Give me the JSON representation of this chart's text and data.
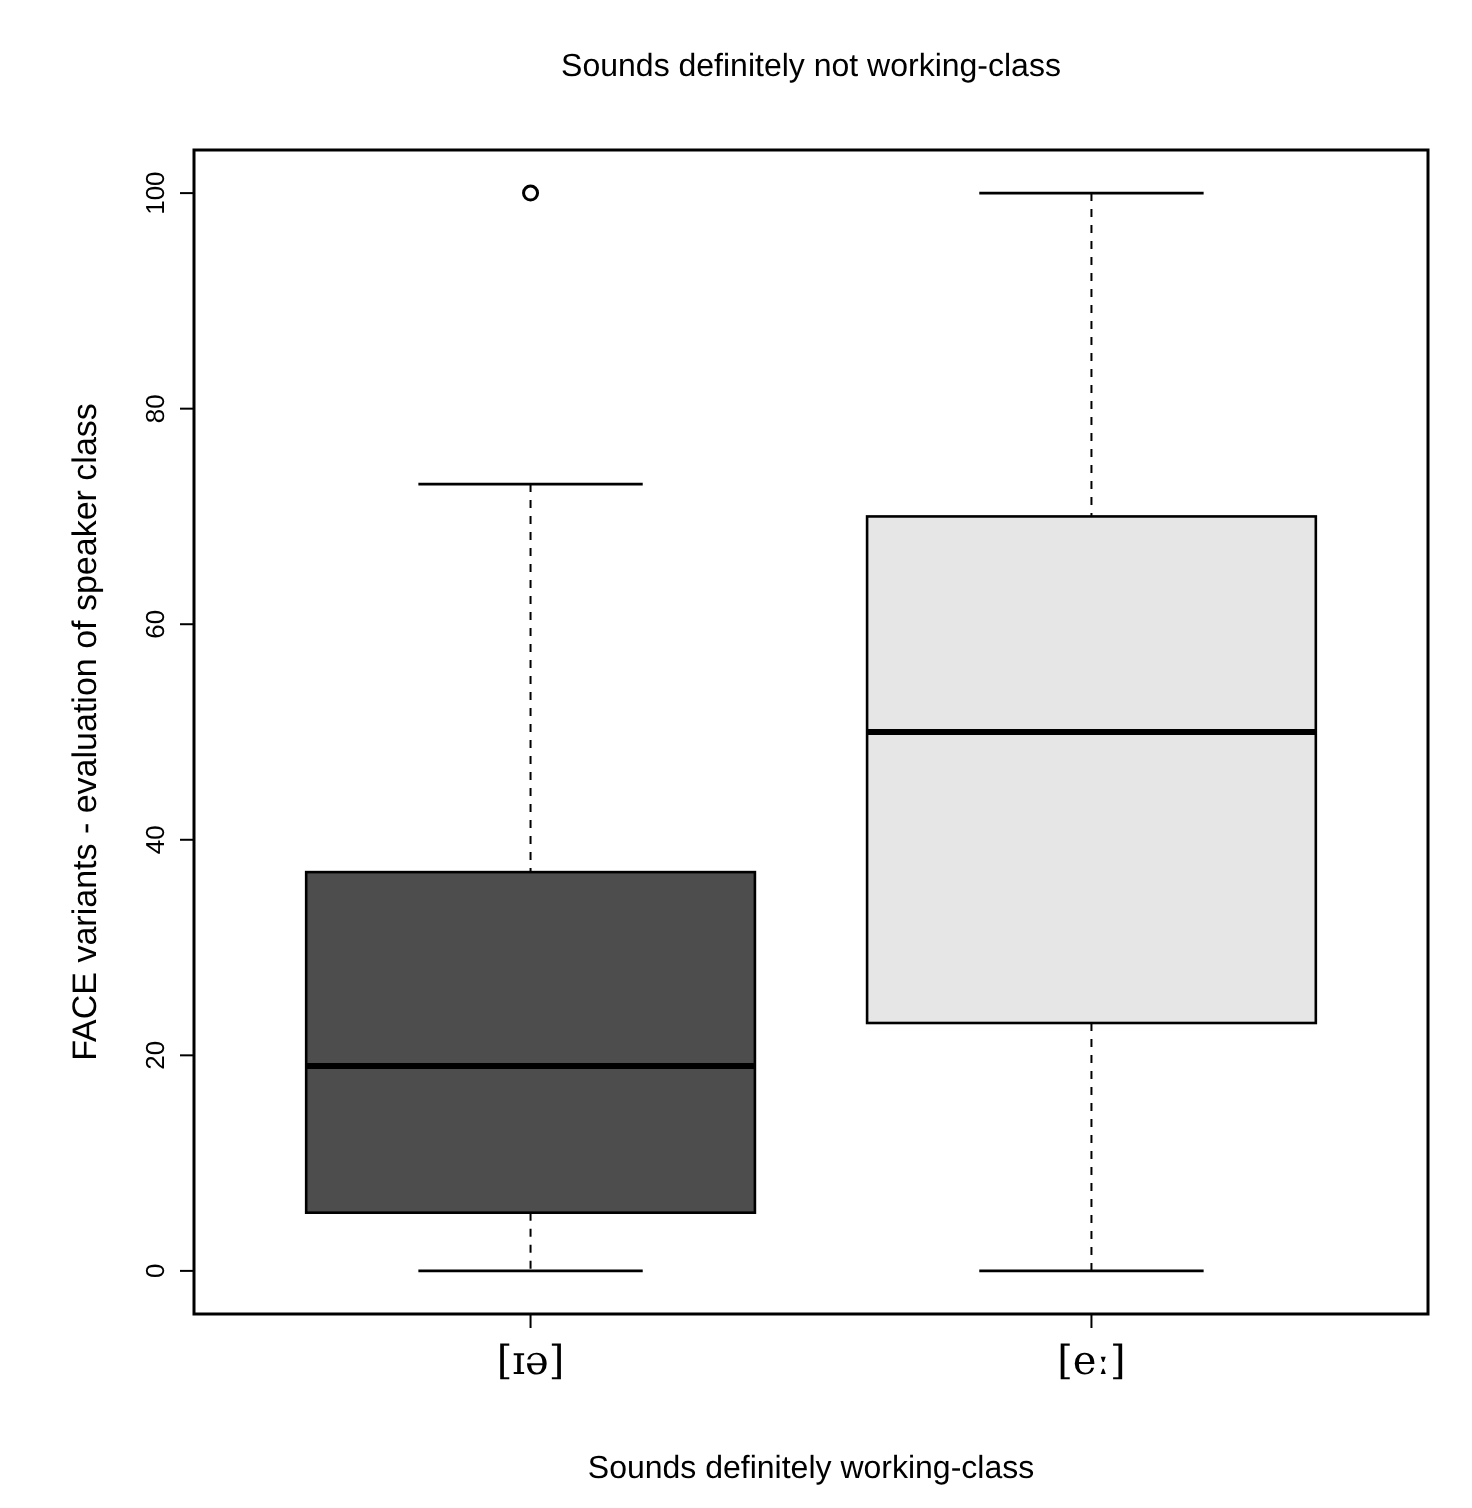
{
  "chart_data": {
    "type": "box",
    "title": "Sounds definitely not working-class",
    "xlabel": "Sounds definitely working-class",
    "ylabel": "FACE variants - evaluation of speaker class",
    "categories": [
      "[ɪə]",
      "[eː]"
    ],
    "colors": [
      "#4d4d4d",
      "#e6e6e6"
    ],
    "boxes": [
      {
        "low": 0,
        "q1": 5.4,
        "median": 19,
        "q3": 37,
        "high": 73,
        "outliers": [
          100
        ]
      },
      {
        "low": 0,
        "q1": 23,
        "median": 50,
        "q3": 70,
        "high": 100
      }
    ],
    "ylim": [
      -4,
      104
    ],
    "yticks": [
      0,
      20,
      40,
      60,
      80,
      100
    ],
    "grid": false
  }
}
